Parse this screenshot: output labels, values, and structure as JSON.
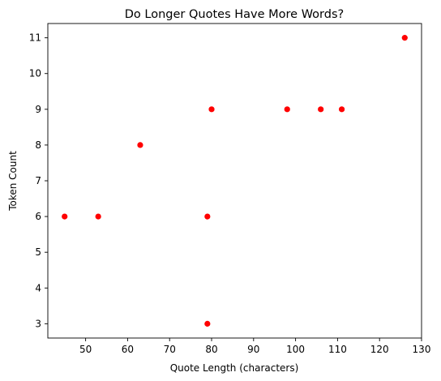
{
  "chart_data": {
    "type": "scatter",
    "title": "Do Longer Quotes Have More Words?",
    "xlabel": "Quote Length (characters)",
    "ylabel": "Token Count",
    "xlim": [
      41,
      130
    ],
    "ylim": [
      2.6,
      11.4
    ],
    "x_ticks": [
      50,
      60,
      70,
      80,
      90,
      100,
      110,
      120,
      130
    ],
    "y_ticks": [
      3,
      4,
      5,
      6,
      7,
      8,
      9,
      10,
      11
    ],
    "grid": false,
    "legend": "none",
    "marker_color": "#ff0000",
    "points": [
      {
        "x": 45,
        "y": 6
      },
      {
        "x": 53,
        "y": 6
      },
      {
        "x": 63,
        "y": 8
      },
      {
        "x": 79,
        "y": 6
      },
      {
        "x": 79,
        "y": 3
      },
      {
        "x": 80,
        "y": 9
      },
      {
        "x": 98,
        "y": 9
      },
      {
        "x": 106,
        "y": 9
      },
      {
        "x": 111,
        "y": 9
      },
      {
        "x": 126,
        "y": 11
      }
    ]
  }
}
